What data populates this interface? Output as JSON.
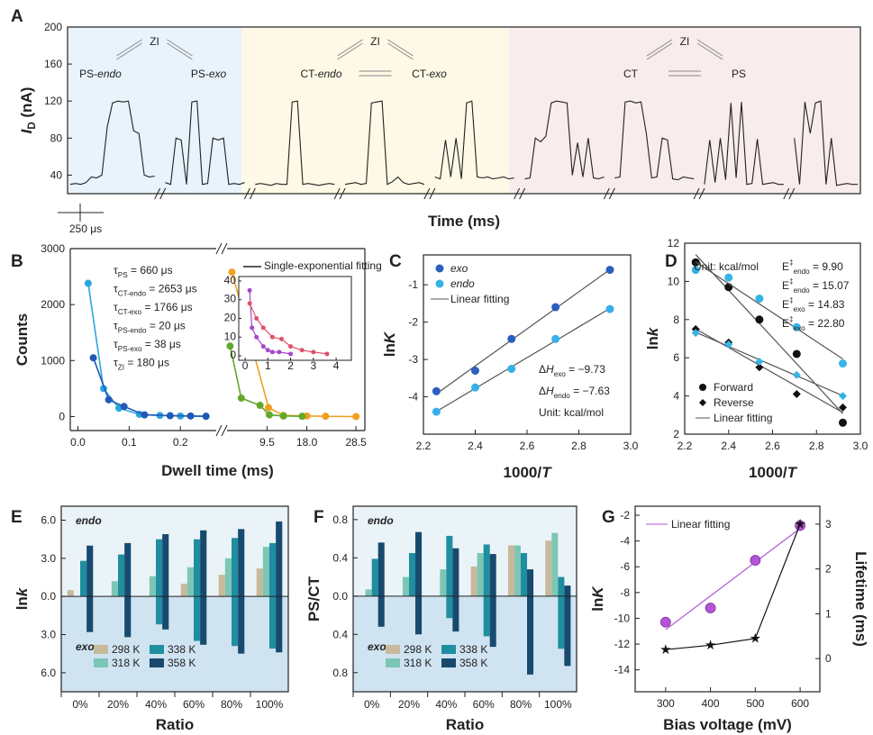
{
  "chart_data": [
    {
      "label": "A",
      "type": "line",
      "ylabel": {
        "em": "I",
        "sub": "D",
        "main": " (nA)"
      },
      "xlabel": "Time (ms)",
      "ylim": [
        20,
        200
      ],
      "yticks": [
        40,
        80,
        120,
        160,
        200
      ],
      "color": "#222222",
      "regions": [
        {
          "color": "#e8f3fb"
        },
        {
          "color": "#fdf9e6"
        },
        {
          "color": "#f8ecec"
        }
      ],
      "schemes": [
        {
          "top": {
            "main": "ZI",
            "color": "#a646c9"
          },
          "left": {
            "main": "PS-",
            "em": "endo",
            "color": "#2aa6dc"
          },
          "right": {
            "main": "PS-",
            "em": "exo",
            "color": "#2059b5"
          }
        },
        {
          "top": {
            "main": "ZI",
            "color": "#a646c9"
          },
          "left": {
            "main": "CT-",
            "em": "endo",
            "color": "#f0a020"
          },
          "right": {
            "main": "CT-",
            "em": "exo",
            "color": "#62a82a"
          }
        },
        {
          "top": {
            "main": "ZI",
            "color": "#a646c9"
          },
          "left": {
            "main": "CT",
            "color": "#222222"
          },
          "right": {
            "main": "PS",
            "color": "#222222"
          }
        }
      ],
      "scale_bar": "250 μs",
      "values": [
        30,
        31,
        30,
        32,
        38,
        37,
        40,
        92,
        118,
        120,
        119,
        120,
        88,
        85,
        40,
        38,
        39,
        null,
        32,
        30,
        80,
        78,
        30,
        119,
        120,
        30,
        31,
        80,
        78,
        80,
        30,
        31,
        30,
        32,
        null,
        30,
        31,
        30,
        29,
        31,
        30,
        30,
        119,
        120,
        30,
        31,
        30,
        29,
        30,
        31,
        30,
        null,
        30,
        31,
        32,
        30,
        31,
        118,
        119,
        120,
        30,
        33,
        38,
        32,
        30,
        31,
        32,
        30,
        null,
        38,
        36,
        78,
        38,
        80,
        36,
        118,
        120,
        38,
        37,
        38,
        36,
        37,
        38,
        36,
        37,
        null,
        36,
        37,
        80,
        76,
        82,
        118,
        120,
        119,
        118,
        40,
        75,
        38,
        80,
        37,
        36,
        38,
        null,
        37,
        38,
        119,
        120,
        118,
        119,
        85,
        37,
        38,
        80,
        78,
        36,
        35,
        38,
        37,
        36,
        null,
        30,
        78,
        32,
        80,
        35,
        118,
        37,
        119,
        30,
        31,
        79,
        30,
        31,
        32,
        30,
        30,
        null,
        80,
        30,
        119,
        85,
        118,
        120,
        30,
        80,
        29,
        30,
        31,
        30,
        30
      ]
    },
    {
      "label": "B",
      "type": "scatter",
      "ylabel": "Counts",
      "xlabel": "Dwell time (ms)",
      "ylim": [
        -250,
        3000
      ],
      "yticks": [
        0,
        1000,
        2000,
        3000
      ],
      "x_segments": [
        {
          "xlim": [
            -0.015,
            0.27
          ],
          "xticks": [
            {
              "value": 0,
              "label": "0.0"
            },
            0.1,
            0.2
          ]
        },
        {
          "xlim": [
            0.95,
            30.4
          ],
          "xticks": [
            9.5,
            {
              "value": 18,
              "label": "18.0"
            },
            28.5
          ]
        }
      ],
      "series": [
        {
          "color": "#2aa6dc",
          "segment": 0,
          "x": [
            0.02,
            0.05,
            0.08,
            0.12,
            0.16,
            0.2,
            0.25
          ],
          "values": [
            2380,
            500,
            150,
            40,
            20,
            10,
            5
          ]
        },
        {
          "color": "#2059b5",
          "segment": 0,
          "x": [
            0.03,
            0.06,
            0.09,
            0.13,
            0.18,
            0.22,
            0.25
          ],
          "values": [
            1050,
            300,
            180,
            30,
            15,
            10,
            5
          ]
        },
        {
          "color": "#f0a020",
          "segment": 1,
          "x": [
            2,
            9.8,
            13,
            18,
            22,
            28.5
          ],
          "values": [
            2580,
            160,
            20,
            10,
            5,
            0
          ]
        },
        {
          "color": "#62a82a",
          "segment": 1,
          "x": [
            1.6,
            4,
            8,
            10,
            13,
            17
          ],
          "values": [
            1260,
            330,
            200,
            30,
            10,
            5
          ]
        }
      ],
      "legend": [
        {
          "main": "τ",
          "sub": "PS",
          "text": " = 660 μs",
          "color": "#e0506a"
        },
        {
          "main": "τ",
          "sub": "CT-endo",
          "text": " = 2653 μs",
          "color": "#f0a020"
        },
        {
          "main": "τ",
          "sub": "CT-exo",
          "text": " = 1766 μs",
          "color": "#62a82a"
        },
        {
          "main": "τ",
          "sub": "PS-endo",
          "text": " = 20 μs",
          "color": "#2aa6dc"
        },
        {
          "main": "τ",
          "sub": "PS-exo",
          "text": " = 38 μs",
          "color": "#2059b5"
        },
        {
          "main": "τ",
          "sub": "ZI",
          "text": " = 180 μs",
          "color": "#a646c9"
        }
      ],
      "inset": {
        "xlim": [
          -0.28,
          4.67
        ],
        "xticks": [
          0,
          1,
          2,
          3,
          4
        ],
        "ylim": [
          -2.4,
          42.4
        ],
        "yticks": [
          0,
          10,
          20,
          30,
          40
        ],
        "legend": "Single-exponential fitting",
        "legend_color": "#222222",
        "series": [
          {
            "color": "#a646c9",
            "x": [
              0.2,
              0.3,
              0.5,
              0.8,
              1.0,
              1.2,
              1.5,
              2.0
            ],
            "values": [
              35,
              15,
              10,
              5,
              3,
              2,
              2,
              1
            ]
          },
          {
            "color": "#e0506a",
            "x": [
              0.2,
              0.5,
              0.8,
              1.2,
              1.6,
              2.0,
              2.5,
              3.0,
              3.6
            ],
            "values": [
              28,
              20,
              15,
              10,
              9,
              5,
              3,
              2,
              1
            ]
          }
        ]
      }
    },
    {
      "label": "C",
      "type": "scatter",
      "ylabel": {
        "main": "ln",
        "em": "K"
      },
      "xlabel": {
        "main": "1000/",
        "em": "T"
      },
      "xlim": [
        2.2,
        3.0
      ],
      "xticks": [
        2.2,
        2.4,
        2.6,
        2.8,
        {
          "value": 3,
          "label": "3.0"
        }
      ],
      "ylim": [
        -5,
        -0.2
      ],
      "yticks": [
        -4,
        -3,
        -2,
        -1
      ],
      "series": [
        {
          "name": "exo",
          "color": "#2b5fc0",
          "marker": "circle",
          "x": [
            2.25,
            2.4,
            2.54,
            2.71,
            2.92
          ],
          "values": [
            -3.85,
            -3.3,
            -2.45,
            -1.6,
            -0.6
          ]
        },
        {
          "name": "endo",
          "color": "#36b0e8",
          "marker": "circle",
          "x": [
            2.25,
            2.4,
            2.54,
            2.71,
            2.92
          ],
          "values": [
            -4.4,
            -3.75,
            -3.25,
            -2.45,
            -1.65
          ]
        }
      ],
      "fit": {
        "name": "Linear fitting",
        "color": "#555555"
      },
      "annotations": [
        {
          "main": "Δ",
          "em": "H",
          "sub": "exo",
          "text": " = −9.73"
        },
        {
          "main": "Δ",
          "em": "H",
          "sub": "endo",
          "text": " = −7.63"
        },
        {
          "main": "Unit: kcal/mol"
        }
      ]
    },
    {
      "label": "D",
      "type": "scatter",
      "ylabel": {
        "main": "ln",
        "em": "k"
      },
      "xlabel": {
        "main": "1000/",
        "em": "T"
      },
      "xlim": [
        2.2,
        3.0
      ],
      "xticks": [
        2.2,
        2.4,
        2.6,
        2.8,
        {
          "value": 3,
          "label": "3.0"
        }
      ],
      "ylim": [
        2,
        12
      ],
      "yticks": [
        2,
        4,
        6,
        8,
        10,
        12
      ],
      "series": [
        {
          "color": "#111111",
          "marker": "circle",
          "x": [
            2.25,
            2.4,
            2.54,
            2.71,
            2.92
          ],
          "values": [
            11.0,
            9.7,
            8.0,
            6.2,
            2.6
          ]
        },
        {
          "color": "#35b4e6",
          "marker": "circle",
          "x": [
            2.25,
            2.4,
            2.54,
            2.71,
            2.92
          ],
          "values": [
            10.6,
            10.2,
            9.1,
            7.6,
            5.7
          ]
        },
        {
          "color": "#111111",
          "marker": "diamond",
          "x": [
            2.25,
            2.4,
            2.54,
            2.71,
            2.92
          ],
          "values": [
            7.5,
            6.8,
            5.5,
            4.1,
            3.4
          ]
        },
        {
          "color": "#35b4e6",
          "marker": "diamond",
          "x": [
            2.25,
            2.4,
            2.54,
            2.71,
            2.92
          ],
          "values": [
            7.3,
            6.7,
            5.8,
            5.1,
            4.0
          ]
        }
      ],
      "fit": {
        "name": "Linear fitting",
        "color": "#555555"
      },
      "legend": [
        {
          "name": "Forward",
          "marker": "circle"
        },
        {
          "name": "Reverse",
          "marker": "diamond"
        }
      ],
      "unit": "Unit: kcal/mol",
      "annotations": [
        {
          "main": "E",
          "sup": "‡",
          "sub": "endo",
          "text": " = 9.90"
        },
        {
          "main": "E",
          "sup": "‡",
          "sub": "endo",
          "text": " = 15.07"
        },
        {
          "main": "E",
          "sup": "‡",
          "sub": "exo",
          "text": " = 14.83"
        },
        {
          "main": "E",
          "sup": "‡",
          "sub": "exo",
          "text": " = 22.80"
        }
      ]
    },
    {
      "label": "E",
      "type": "bar",
      "ylabel": {
        "main": "ln",
        "em": "k"
      },
      "xlabel": "Ratio",
      "categories": [
        "0%",
        "20%",
        "40%",
        "60%",
        "80%",
        "100%"
      ],
      "ylim": [
        -7.5,
        7.1
      ],
      "yticks": [
        {
          "value": 6,
          "label": "6.0"
        },
        {
          "value": 3,
          "label": "3.0"
        },
        {
          "value": 0,
          "label": "0.0"
        },
        {
          "value": -3,
          "label": "3.0"
        },
        {
          "value": -6,
          "label": "6.0"
        }
      ],
      "halves": [
        {
          "text": "endo",
          "color": "#2fb3d8",
          "background": "#eaf3f8"
        },
        {
          "text": "exo",
          "color": "#2a62b8",
          "background": "#cfe3f1"
        }
      ],
      "series": [
        {
          "name": "298 K",
          "color": "#c9b99b",
          "values": [
            0.5,
            null,
            null,
            1.0,
            1.7,
            2.2
          ],
          "exo_values": [
            null,
            null,
            null,
            null,
            null,
            null
          ]
        },
        {
          "name": "318 K",
          "color": "#7cc6b6",
          "values": [
            null,
            1.2,
            1.6,
            2.3,
            3.0,
            3.9
          ],
          "exo_values": [
            null,
            null,
            null,
            null,
            null,
            null
          ]
        },
        {
          "name": "338 K",
          "color": "#1f8ea0",
          "values": [
            2.8,
            3.3,
            4.5,
            4.5,
            4.6,
            4.2
          ],
          "exo_values": [
            null,
            null,
            -2.2,
            -3.5,
            -3.9,
            -4.1
          ]
        },
        {
          "name": "358 K",
          "color": "#174a6e",
          "values": [
            4.0,
            4.2,
            4.9,
            5.2,
            5.3,
            5.9
          ],
          "exo_values": [
            -2.8,
            -3.2,
            -2.6,
            -3.8,
            -4.5,
            -4.4
          ]
        }
      ]
    },
    {
      "label": "F",
      "type": "bar",
      "ylabel": "PS/CT",
      "xlabel": "Ratio",
      "categories": [
        "0%",
        "20%",
        "40%",
        "60%",
        "80%",
        "100%"
      ],
      "ylim": [
        -1.0,
        0.94
      ],
      "yticks": [
        {
          "value": 0.8,
          "label": "0.8"
        },
        {
          "value": 0.4,
          "label": "0.4"
        },
        {
          "value": 0,
          "label": "0.0"
        },
        {
          "value": -0.4,
          "label": "0.4"
        },
        {
          "value": -0.8,
          "label": "0.8"
        }
      ],
      "halves": [
        {
          "text": "endo",
          "color": "#2fb3d8",
          "background": "#eaf3f8"
        },
        {
          "text": "exo",
          "color": "#2a62b8",
          "background": "#cfe3f1"
        }
      ],
      "series": [
        {
          "name": "298 K",
          "color": "#c9b99b",
          "values": [
            null,
            null,
            null,
            0.31,
            0.53,
            0.58
          ],
          "exo_values": [
            null,
            null,
            null,
            null,
            null,
            null
          ]
        },
        {
          "name": "318 K",
          "color": "#7cc6b6",
          "values": [
            0.07,
            0.2,
            0.28,
            0.45,
            0.53,
            0.66
          ],
          "exo_values": [
            null,
            null,
            null,
            null,
            null,
            null
          ]
        },
        {
          "name": "338 K",
          "color": "#1f8ea0",
          "values": [
            0.39,
            0.45,
            0.63,
            0.54,
            0.45,
            0.2
          ],
          "exo_values": [
            null,
            null,
            -0.23,
            -0.42,
            null,
            -0.55
          ]
        },
        {
          "name": "358 K",
          "color": "#174a6e",
          "values": [
            0.56,
            0.67,
            0.5,
            0.44,
            0.28,
            0.11
          ],
          "exo_values": [
            -0.32,
            -0.4,
            -0.37,
            -0.53,
            -0.82,
            -0.73
          ]
        }
      ]
    },
    {
      "label": "G",
      "type": "line",
      "ylabel": {
        "main": "ln",
        "em": "K",
        "color": "#b455d6"
      },
      "y2label": "Lifetime (ms)",
      "xlabel": "Bias voltage (mV)",
      "xlim": [
        232,
        644
      ],
      "xticks": [
        300,
        400,
        500,
        600
      ],
      "ylim": [
        -15.7,
        -1.3
      ],
      "yticks": [
        -2,
        -4,
        -6,
        -8,
        -10,
        -12,
        -14
      ],
      "y2lim": [
        -0.74,
        3.4
      ],
      "y2ticks": [
        0,
        1,
        2,
        3
      ],
      "series": [
        {
          "color": "#b455d6",
          "marker": "sphere",
          "x": [
            300,
            400,
            500,
            600
          ],
          "values": [
            -10.3,
            -9.2,
            -5.5,
            -2.8
          ]
        },
        {
          "color": "#111111",
          "marker": "star",
          "axis": "y2",
          "x": [
            300,
            400,
            500,
            600
          ],
          "values": [
            0.2,
            0.3,
            0.45,
            3.0
          ]
        }
      ],
      "fit": {
        "name": "Linear fitting",
        "color": "#b455d6"
      }
    }
  ]
}
